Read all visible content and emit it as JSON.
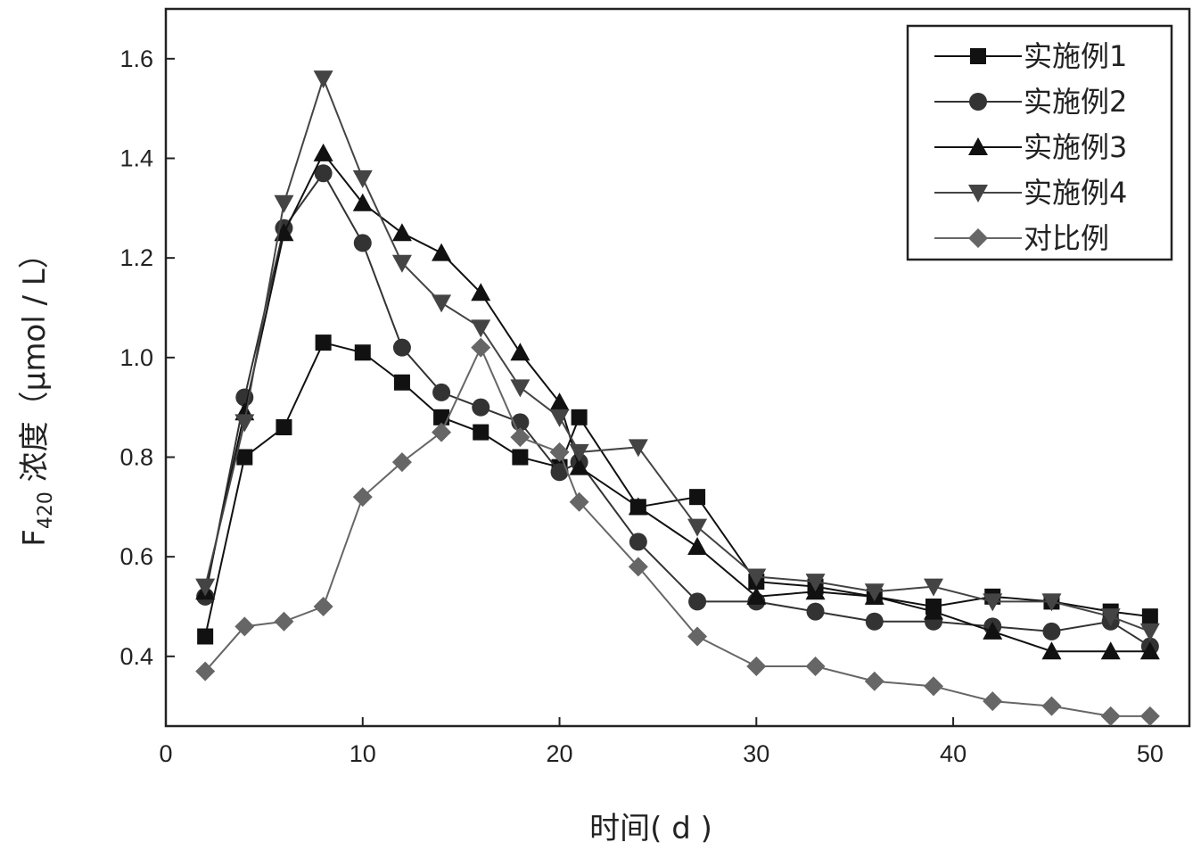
{
  "chart_data": {
    "type": "line",
    "xlabel": "时间( d )",
    "ylabel_prefix": "F",
    "ylabel_sub": "420",
    "ylabel_suffix": " 浓度（μmol / L）",
    "xlim": [
      0,
      52
    ],
    "ylim": [
      0.26,
      1.7
    ],
    "xticks": [
      0,
      10,
      20,
      30,
      40,
      50
    ],
    "yticks": [
      0.4,
      0.6,
      0.8,
      1.0,
      1.2,
      1.4,
      1.6
    ],
    "xtick_labels": [
      "0",
      "10",
      "20",
      "30",
      "40",
      "50"
    ],
    "ytick_labels": [
      "0.4",
      "0.6",
      "0.8",
      "1.0",
      "1.2",
      "1.4",
      "1.6"
    ],
    "legend_position": "top-right",
    "series": [
      {
        "name": "实施例1",
        "marker": "square",
        "color": "#111111",
        "x": [
          2,
          4,
          6,
          8,
          10,
          12,
          14,
          16,
          18,
          20,
          21,
          24,
          27,
          30,
          33,
          36,
          39,
          42,
          45,
          48,
          50
        ],
        "y": [
          0.44,
          0.8,
          0.86,
          1.03,
          1.01,
          0.95,
          0.88,
          0.85,
          0.8,
          0.78,
          0.88,
          0.7,
          0.72,
          0.55,
          0.54,
          0.52,
          0.5,
          0.52,
          0.51,
          0.49,
          0.48
        ]
      },
      {
        "name": "实施例2",
        "marker": "circle",
        "color": "#333333",
        "x": [
          2,
          4,
          6,
          8,
          10,
          12,
          14,
          16,
          18,
          20,
          21,
          24,
          27,
          30,
          33,
          36,
          39,
          42,
          45,
          48,
          50
        ],
        "y": [
          0.52,
          0.92,
          1.26,
          1.37,
          1.23,
          1.02,
          0.93,
          0.9,
          0.87,
          0.77,
          0.79,
          0.63,
          0.51,
          0.51,
          0.49,
          0.47,
          0.47,
          0.46,
          0.45,
          0.47,
          0.42
        ]
      },
      {
        "name": "实施例3",
        "marker": "triangle-up",
        "color": "#111111",
        "x": [
          2,
          4,
          6,
          8,
          10,
          12,
          14,
          16,
          18,
          20,
          21,
          24,
          27,
          30,
          33,
          36,
          39,
          42,
          45,
          48,
          50
        ],
        "y": [
          0.53,
          0.89,
          1.25,
          1.41,
          1.31,
          1.25,
          1.21,
          1.13,
          1.01,
          0.91,
          0.78,
          0.7,
          0.62,
          0.52,
          0.53,
          0.52,
          0.49,
          0.45,
          0.41,
          0.41,
          0.41
        ]
      },
      {
        "name": "实施例4",
        "marker": "triangle-down",
        "color": "#444444",
        "x": [
          2,
          4,
          6,
          8,
          10,
          12,
          14,
          16,
          18,
          20,
          21,
          24,
          27,
          30,
          33,
          36,
          39,
          42,
          45,
          48,
          50
        ],
        "y": [
          0.54,
          0.87,
          1.31,
          1.56,
          1.36,
          1.19,
          1.11,
          1.06,
          0.94,
          0.88,
          0.81,
          0.82,
          0.66,
          0.56,
          0.55,
          0.53,
          0.54,
          0.51,
          0.51,
          0.48,
          0.45
        ]
      },
      {
        "name": "对比例",
        "marker": "diamond",
        "color": "#666666",
        "x": [
          2,
          4,
          6,
          8,
          10,
          12,
          14,
          16,
          18,
          20,
          21,
          24,
          27,
          30,
          33,
          36,
          39,
          42,
          45,
          48,
          50
        ],
        "y": [
          0.37,
          0.46,
          0.47,
          0.5,
          0.72,
          0.79,
          0.85,
          1.02,
          0.84,
          0.81,
          0.71,
          0.58,
          0.44,
          0.38,
          0.38,
          0.35,
          0.34,
          0.31,
          0.3,
          0.28,
          0.28
        ]
      }
    ]
  }
}
